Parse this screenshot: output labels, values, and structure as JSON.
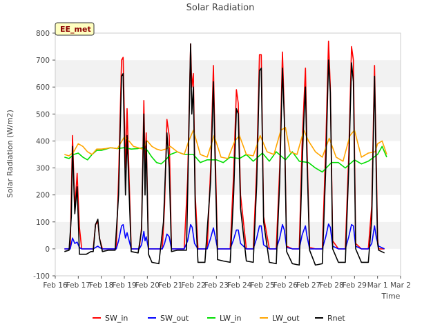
{
  "chart_data": {
    "type": "line",
    "title": "Solar Radiation",
    "xlabel": "Time",
    "ylabel": "Solar Radiation (W/m2)",
    "badge": "EE_met",
    "ylim": [
      -100,
      800
    ],
    "yticks": [
      -100,
      0,
      100,
      200,
      300,
      400,
      500,
      600,
      700,
      800
    ],
    "xlim": [
      0,
      15
    ],
    "xticks": [
      {
        "x": 0,
        "label": "Feb 16"
      },
      {
        "x": 1,
        "label": "Feb 17"
      },
      {
        "x": 2,
        "label": "Feb 18"
      },
      {
        "x": 3,
        "label": "Feb 19"
      },
      {
        "x": 4,
        "label": "Feb 20"
      },
      {
        "x": 5,
        "label": "Feb 21"
      },
      {
        "x": 6,
        "label": "Feb 22"
      },
      {
        "x": 7,
        "label": "Feb 23"
      },
      {
        "x": 8,
        "label": "Feb 24"
      },
      {
        "x": 9,
        "label": "Feb 25"
      },
      {
        "x": 10,
        "label": "Feb 26"
      },
      {
        "x": 11,
        "label": "Feb 27"
      },
      {
        "x": 12,
        "label": "Feb 28"
      },
      {
        "x": 13,
        "label": "Feb 29"
      },
      {
        "x": 14,
        "label": "Mar 1"
      },
      {
        "x": 15,
        "label": "Mar 2"
      }
    ],
    "grid": "horizontal bands",
    "legend_position": "bottom",
    "series": [
      {
        "name": "SW_in",
        "color": "#ff0000",
        "x": [
          0.4,
          0.65,
          0.75,
          0.85,
          0.95,
          1.05,
          1.15,
          1.35,
          1.65,
          1.75,
          1.85,
          1.92,
          2.05,
          2.3,
          2.65,
          2.75,
          2.88,
          2.95,
          3.05,
          3.12,
          3.3,
          3.65,
          3.75,
          3.85,
          3.9,
          3.95,
          4.05,
          4.3,
          4.65,
          4.75,
          4.85,
          4.95,
          5.05,
          5.3,
          5.6,
          5.75,
          5.88,
          5.93,
          6.0,
          6.08,
          6.2,
          6.6,
          6.75,
          6.87,
          6.95,
          7.05,
          7.3,
          7.6,
          7.75,
          7.87,
          7.95,
          8.05,
          8.3,
          8.6,
          8.75,
          8.87,
          8.95,
          9.05,
          9.3,
          9.6,
          9.75,
          9.87,
          9.95,
          10.05,
          10.3,
          10.6,
          10.72,
          10.8,
          10.87,
          10.93,
          11.05,
          11.3,
          11.6,
          11.75,
          11.87,
          11.95,
          12.05,
          12.3,
          12.6,
          12.75,
          12.87,
          12.95,
          13.05,
          13.3,
          13.6,
          13.75,
          13.87,
          13.95,
          14.0,
          14.05,
          14.3
        ],
        "y": [
          0,
          0,
          420,
          150,
          280,
          80,
          0,
          0,
          0,
          90,
          100,
          40,
          0,
          0,
          0,
          260,
          700,
          710,
          300,
          520,
          0,
          0,
          80,
          550,
          300,
          430,
          0,
          0,
          0,
          160,
          480,
          420,
          0,
          0,
          0,
          260,
          760,
          600,
          650,
          200,
          0,
          0,
          300,
          680,
          350,
          0,
          0,
          0,
          280,
          590,
          540,
          200,
          0,
          0,
          300,
          720,
          720,
          120,
          0,
          0,
          300,
          730,
          500,
          10,
          0,
          0,
          380,
          540,
          670,
          400,
          5,
          0,
          0,
          380,
          770,
          600,
          30,
          0,
          0,
          350,
          750,
          700,
          20,
          0,
          0,
          160,
          680,
          300,
          40,
          0,
          0
        ]
      },
      {
        "name": "SW_out",
        "color": "#0000ff",
        "x": [
          0.4,
          0.65,
          0.75,
          0.85,
          0.95,
          1.05,
          1.15,
          1.3,
          1.65,
          1.75,
          1.85,
          1.92,
          2.05,
          2.3,
          2.65,
          2.75,
          2.88,
          2.95,
          3.05,
          3.12,
          3.3,
          3.65,
          3.75,
          3.85,
          3.9,
          3.95,
          4.05,
          4.3,
          4.65,
          4.75,
          4.85,
          4.95,
          5.05,
          5.3,
          5.6,
          5.75,
          5.88,
          5.95,
          6.05,
          6.2,
          6.6,
          6.75,
          6.87,
          6.95,
          7.05,
          7.3,
          7.6,
          7.75,
          7.87,
          7.95,
          8.05,
          8.3,
          8.6,
          8.75,
          8.87,
          8.95,
          9.05,
          9.3,
          9.6,
          9.75,
          9.87,
          9.95,
          10.05,
          10.3,
          10.6,
          10.72,
          10.8,
          10.87,
          10.93,
          11.05,
          11.3,
          11.6,
          11.75,
          11.87,
          11.95,
          12.05,
          12.3,
          12.6,
          12.75,
          12.87,
          12.95,
          13.05,
          13.3,
          13.6,
          13.75,
          13.87,
          13.95,
          14.05,
          14.3
        ],
        "y": [
          0,
          0,
          40,
          20,
          25,
          5,
          0,
          0,
          0,
          5,
          10,
          5,
          0,
          0,
          0,
          30,
          85,
          90,
          40,
          60,
          0,
          0,
          15,
          65,
          30,
          45,
          0,
          0,
          0,
          20,
          55,
          45,
          0,
          0,
          0,
          30,
          90,
          80,
          20,
          0,
          0,
          40,
          78,
          45,
          0,
          0,
          0,
          35,
          70,
          70,
          20,
          0,
          0,
          40,
          85,
          85,
          15,
          0,
          0,
          40,
          90,
          70,
          5,
          0,
          0,
          50,
          70,
          85,
          50,
          0,
          0,
          0,
          45,
          92,
          80,
          10,
          0,
          0,
          45,
          90,
          85,
          10,
          0,
          0,
          20,
          85,
          40,
          10,
          0
        ]
      },
      {
        "name": "LW_in",
        "color": "#00dd00",
        "x": [
          0.4,
          0.6,
          0.8,
          1.0,
          1.2,
          1.4,
          1.6,
          1.8,
          2.0,
          2.2,
          2.4,
          2.7,
          3.0,
          3.3,
          3.6,
          3.8,
          4.0,
          4.2,
          4.4,
          4.6,
          4.8,
          5.0,
          5.3,
          5.6,
          6.0,
          6.3,
          6.6,
          7.0,
          7.3,
          7.6,
          8.0,
          8.3,
          8.6,
          9.0,
          9.3,
          9.6,
          10.0,
          10.3,
          10.6,
          11.0,
          11.3,
          11.6,
          12.0,
          12.3,
          12.6,
          13.0,
          13.3,
          13.6,
          14.0,
          14.2,
          14.4
        ],
        "y": [
          340,
          335,
          350,
          355,
          340,
          330,
          350,
          365,
          365,
          370,
          375,
          372,
          375,
          370,
          372,
          375,
          365,
          340,
          320,
          315,
          330,
          350,
          360,
          350,
          350,
          320,
          330,
          330,
          320,
          340,
          335,
          350,
          325,
          355,
          325,
          360,
          330,
          360,
          325,
          320,
          300,
          285,
          320,
          320,
          300,
          330,
          315,
          325,
          350,
          380,
          340
        ]
      },
      {
        "name": "LW_out",
        "color": "#ffa500",
        "x": [
          0.4,
          0.6,
          0.8,
          1.0,
          1.2,
          1.4,
          1.6,
          1.8,
          2.0,
          2.2,
          2.4,
          2.7,
          3.0,
          3.2,
          3.4,
          3.6,
          3.8,
          4.0,
          4.2,
          4.4,
          4.6,
          4.8,
          5.0,
          5.3,
          5.6,
          5.8,
          6.0,
          6.3,
          6.6,
          6.9,
          7.2,
          7.5,
          7.8,
          8.0,
          8.3,
          8.6,
          8.9,
          9.2,
          9.5,
          9.8,
          10.0,
          10.2,
          10.5,
          10.8,
          11.0,
          11.3,
          11.6,
          11.9,
          12.2,
          12.5,
          12.8,
          13.0,
          13.3,
          13.6,
          13.9,
          14.0,
          14.2,
          14.4
        ],
        "y": [
          350,
          345,
          360,
          390,
          380,
          360,
          350,
          370,
          370,
          372,
          375,
          372,
          415,
          400,
          380,
          375,
          370,
          400,
          380,
          370,
          365,
          370,
          380,
          360,
          350,
          400,
          440,
          350,
          340,
          420,
          340,
          335,
          400,
          420,
          350,
          345,
          420,
          360,
          350,
          440,
          450,
          360,
          350,
          440,
          400,
          360,
          340,
          410,
          340,
          325,
          420,
          440,
          340,
          355,
          360,
          390,
          400,
          350
        ]
      },
      {
        "name": "Rnet",
        "color": "#000000",
        "x": [
          0.4,
          0.6,
          0.7,
          0.75,
          0.85,
          0.95,
          1.05,
          1.15,
          1.35,
          1.55,
          1.65,
          1.75,
          1.85,
          1.92,
          2.05,
          2.3,
          2.6,
          2.75,
          2.88,
          2.95,
          3.05,
          3.12,
          3.3,
          3.6,
          3.75,
          3.85,
          3.9,
          3.95,
          4.05,
          4.2,
          4.5,
          4.7,
          4.85,
          4.95,
          5.05,
          5.3,
          5.7,
          5.75,
          5.88,
          5.93,
          6.0,
          6.08,
          6.2,
          6.5,
          6.75,
          6.87,
          6.95,
          7.05,
          7.3,
          7.6,
          7.75,
          7.87,
          7.95,
          8.05,
          8.3,
          8.6,
          8.75,
          8.87,
          8.95,
          9.05,
          9.3,
          9.6,
          9.75,
          9.87,
          9.95,
          10.05,
          10.3,
          10.6,
          10.72,
          10.8,
          10.87,
          10.93,
          11.05,
          11.3,
          11.6,
          11.75,
          11.87,
          11.95,
          12.05,
          12.3,
          12.6,
          12.75,
          12.87,
          12.95,
          13.05,
          13.3,
          13.6,
          13.75,
          13.87,
          13.95,
          14.0,
          14.05,
          14.3
        ],
        "y": [
          -10,
          -5,
          120,
          380,
          130,
          230,
          -20,
          -20,
          -20,
          -10,
          -10,
          90,
          110,
          40,
          -10,
          -5,
          -5,
          200,
          640,
          650,
          200,
          420,
          -10,
          -15,
          70,
          500,
          200,
          400,
          -20,
          -50,
          -55,
          100,
          430,
          300,
          -10,
          -5,
          -5,
          200,
          760,
          500,
          600,
          150,
          -50,
          -50,
          250,
          620,
          300,
          -40,
          -45,
          -50,
          200,
          520,
          500,
          150,
          -45,
          -50,
          240,
          660,
          670,
          100,
          -50,
          -55,
          250,
          670,
          480,
          -10,
          -55,
          -60,
          300,
          480,
          600,
          350,
          -5,
          -60,
          -55,
          300,
          700,
          580,
          0,
          -50,
          -50,
          300,
          690,
          620,
          0,
          -50,
          -50,
          110,
          640,
          250,
          20,
          -5,
          -15
        ]
      }
    ]
  }
}
